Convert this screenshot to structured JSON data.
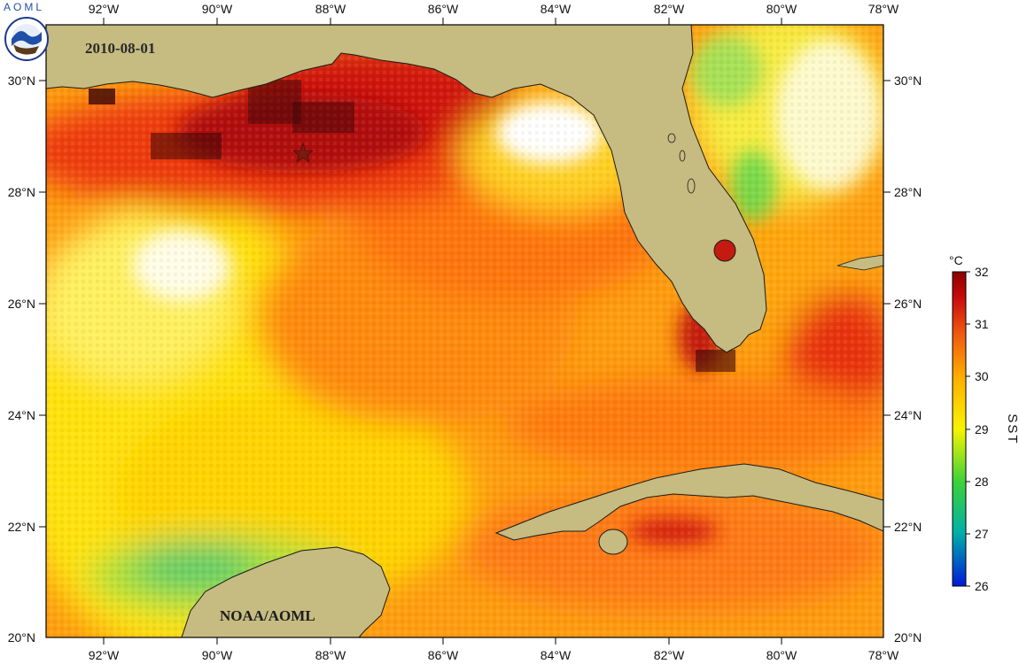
{
  "header": {
    "logo_text": "AOML",
    "logo_icon": "noaa-logo-icon"
  },
  "map": {
    "date": "2010-08-01",
    "credit": "NOAA/AOML",
    "marker_icon": "star-icon",
    "lon_ticks": [
      "92°W",
      "90°W",
      "88°W",
      "86°W",
      "84°W",
      "82°W",
      "80°W",
      "78°W"
    ],
    "lat_ticks": [
      "30°N",
      "28°N",
      "26°N",
      "24°N",
      "22°N",
      "20°N"
    ],
    "extent": {
      "lon": [
        -93,
        -78
      ],
      "lat": [
        20,
        31
      ]
    },
    "colors": {
      "land": "#c6bb80",
      "no_data": "#ffffff",
      "warm_core": "#c41a10",
      "hot_spot": "#7a0c0a"
    }
  },
  "colorbar": {
    "unit": "°C",
    "title": "SST",
    "min": 26,
    "max": 32,
    "ticks": [
      "32",
      "31",
      "30",
      "29",
      "28",
      "27",
      "26"
    ],
    "stops": [
      "#0018d8",
      "#00b0a8",
      "#3ad23a",
      "#f8f400",
      "#ffb000",
      "#f05a10",
      "#c80a0a",
      "#8c0000"
    ]
  }
}
